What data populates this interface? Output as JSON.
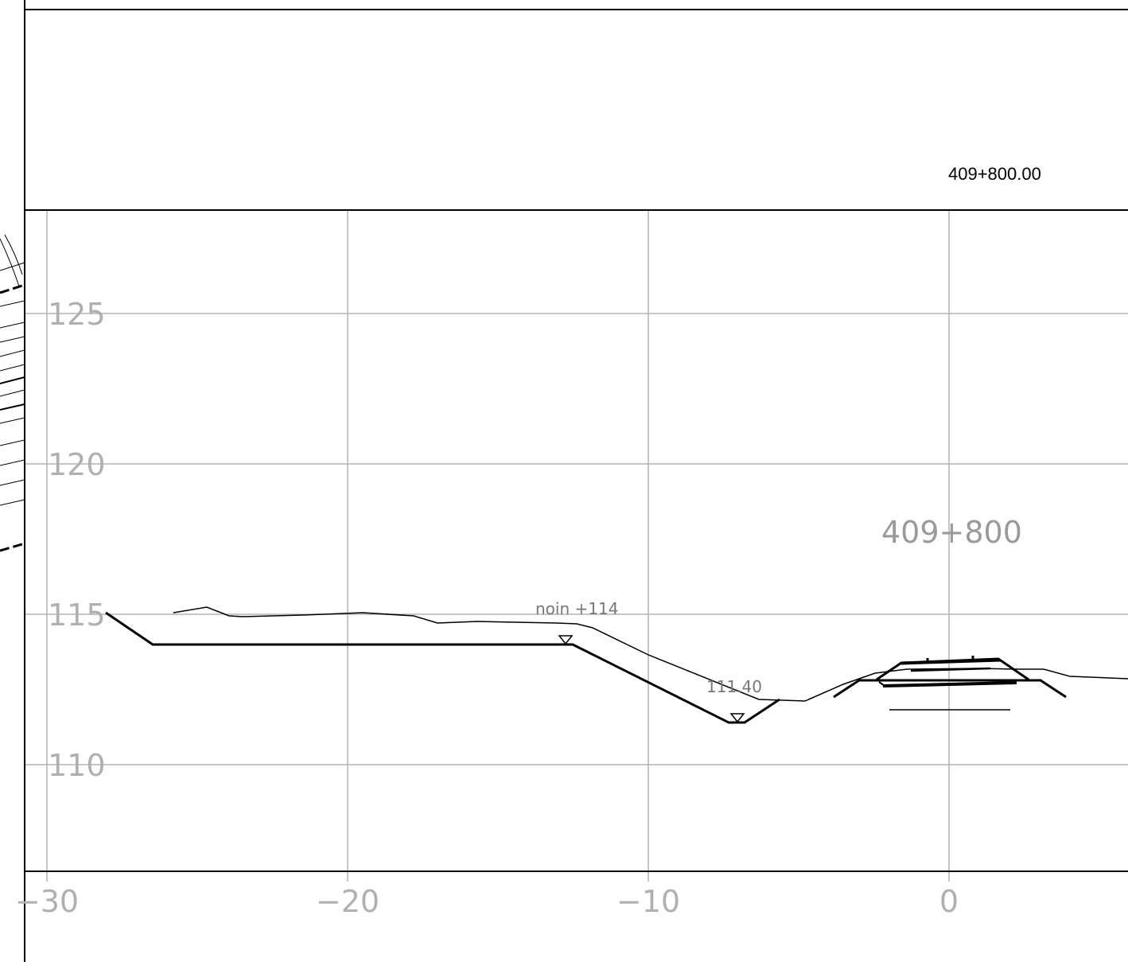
{
  "header": {
    "station_label": "409+800.00"
  },
  "section": {
    "station_title": "409+800",
    "x_ticks": [
      "-30",
      "-20",
      "-10",
      "0"
    ],
    "y_ticks": [
      "125",
      "120",
      "115",
      "110"
    ],
    "annotations": {
      "noin": "noin  +114",
      "ditch_level": "111.40"
    }
  },
  "colors": {
    "frame": "#000000",
    "grid": "#b3b3b3",
    "axis_text": "#b0b0b0",
    "annotation_text": "#777777"
  }
}
